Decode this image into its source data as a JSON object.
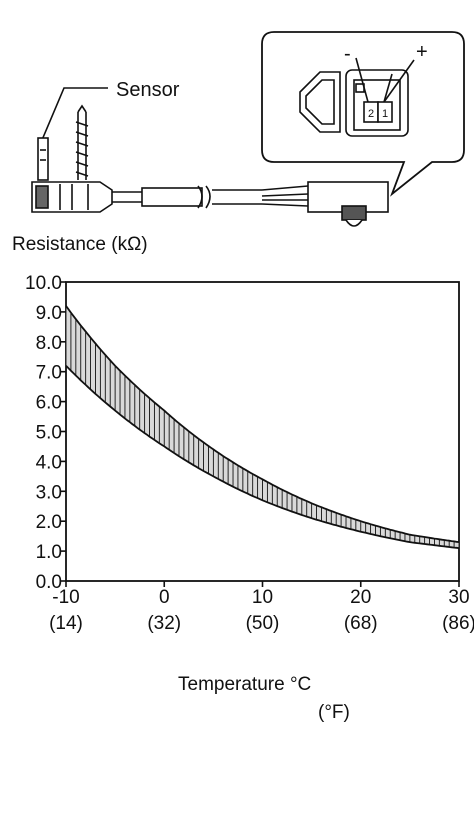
{
  "diagram": {
    "sensor_label": "Sensor",
    "connector": {
      "terminal_pins": [
        "2",
        "1"
      ],
      "polarity_minus": "-",
      "polarity_plus": "+"
    }
  },
  "chart_data": {
    "type": "area",
    "ylabel": "Resistance (kΩ)",
    "xlabel_c": "Temperature  °C",
    "xlabel_f": "(°F)",
    "xlim": [
      -10,
      30
    ],
    "ylim": [
      0,
      10
    ],
    "y_ticks": [
      "0.0",
      "1.0",
      "2.0",
      "3.0",
      "4.0",
      "5.0",
      "6.0",
      "7.0",
      "8.0",
      "9.0",
      "10.0"
    ],
    "x_ticks": [
      {
        "c": "-10",
        "f": "(14)"
      },
      {
        "c": "0",
        "f": "(32)"
      },
      {
        "c": "10",
        "f": "(50)"
      },
      {
        "c": "20",
        "f": "(68)"
      },
      {
        "c": "30",
        "f": "(86)"
      }
    ],
    "band_upper": {
      "x": [
        -10,
        -5,
        0,
        5,
        10,
        15,
        20,
        25,
        30
      ],
      "y": [
        9.2,
        7.2,
        5.7,
        4.4,
        3.4,
        2.6,
        2.0,
        1.55,
        1.3
      ]
    },
    "band_lower": {
      "x": [
        -10,
        -5,
        0,
        5,
        10,
        15,
        20,
        25,
        30
      ],
      "y": [
        7.2,
        5.7,
        4.5,
        3.5,
        2.7,
        2.1,
        1.65,
        1.3,
        1.1
      ]
    }
  }
}
